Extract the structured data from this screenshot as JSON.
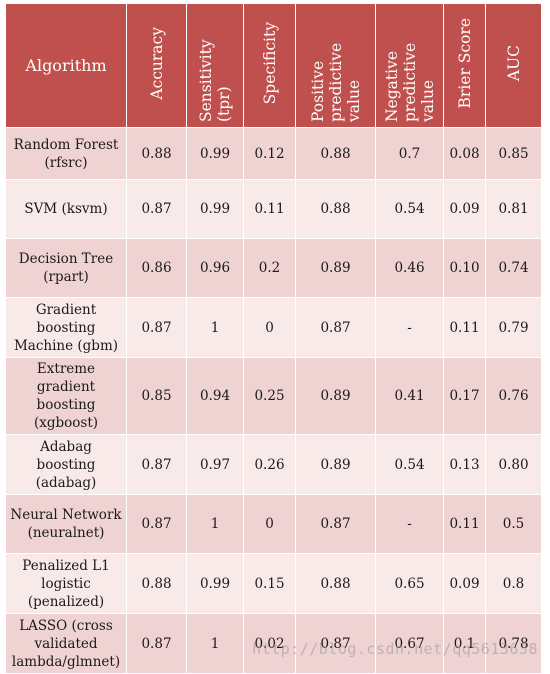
{
  "table": {
    "headers": [
      "Algorithm",
      "Accuracy",
      "Sensitivity (tpr)",
      "Specificity",
      "Positive\npredictive value",
      "Negative\npredictive value",
      "Brier Score",
      "AUC"
    ],
    "rows": [
      [
        "Random Forest\n(rfsrc)",
        "0.88",
        "0.99",
        "0.12",
        "0.88",
        "0.7",
        "0.08",
        "0.85"
      ],
      [
        "SVM (ksvm)",
        "0.87",
        "0.99",
        "0.11",
        "0.88",
        "0.54",
        "0.09",
        "0.81"
      ],
      [
        "Decision Tree\n(rpart)",
        "0.86",
        "0.96",
        "0.2",
        "0.89",
        "0.46",
        "0.10",
        "0.74"
      ],
      [
        "Gradient\nboosting\nMachine (gbm)",
        "0.87",
        "1",
        "0",
        "0.87",
        "-",
        "0.11",
        "0.79"
      ],
      [
        "Extreme\ngradient\nboosting\n(xgboost)",
        "0.85",
        "0.94",
        "0.25",
        "0.89",
        "0.41",
        "0.17",
        "0.76"
      ],
      [
        "Adabag\nboosting\n(adabag)",
        "0.87",
        "0.97",
        "0.26",
        "0.89",
        "0.54",
        "0.13",
        "0.80"
      ],
      [
        "Neural Network\n(neuralnet)",
        "0.87",
        "1",
        "0",
        "0.87",
        "-",
        "0.11",
        "0.5"
      ],
      [
        "Penalized L1\nlogistic\n(penalized)",
        "0.88",
        "0.99",
        "0.15",
        "0.88",
        "0.65",
        "0.09",
        "0.8"
      ],
      [
        "LASSO (cross\nvalidated\nlambda/glmnet)",
        "0.87",
        "1",
        "0.02",
        "0.87",
        "0.67",
        "0.1",
        "0.78"
      ]
    ]
  },
  "watermark": "http://blog.csdn.net/qq5613638"
}
